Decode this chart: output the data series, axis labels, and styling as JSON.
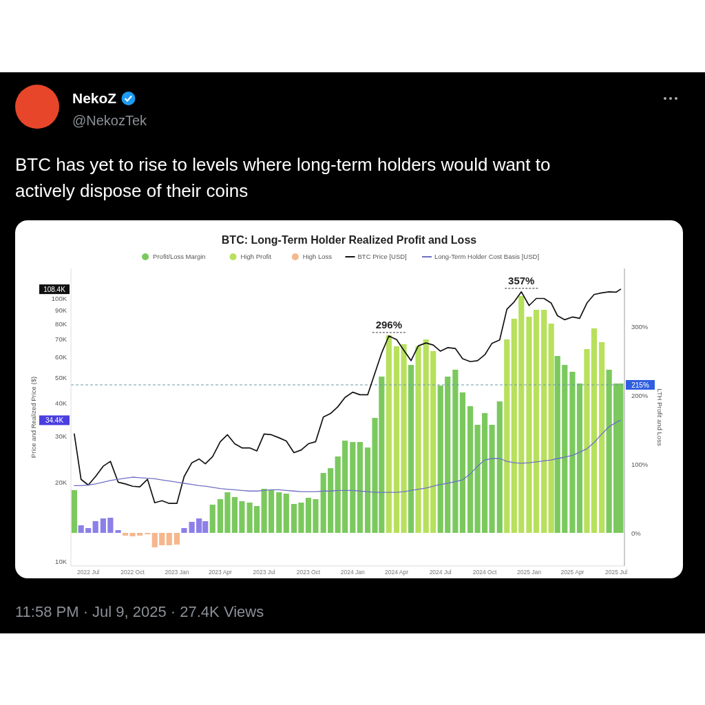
{
  "chart_data": {
    "type": "bar",
    "title": "BTC: Long-Term Holder Realized Profit and Loss",
    "ylabel": "Price and Realized Price ($)",
    "y2label": "LTH Profit and Loss",
    "annotations": [
      "NekoZ",
      "@NekozTek",
      "BTC has yet to rise to levels where long-term holders would want to actively dispose of their coins",
      "11:58 PM · Jul 9, 2025 · 27.4K Views",
      {
        "text": "296%",
        "x": "2024-03-16",
        "y": 72000
      },
      {
        "text": "357%",
        "x": "2024-12-16",
        "y": 106000
      },
      "108.4K",
      "34.4K"
    ],
    "x": [
      "2022-06-02",
      "2022-06-16",
      "2022-07-01",
      "2022-07-16",
      "2022-08-01",
      "2022-08-16",
      "2022-09-01",
      "2022-09-16",
      "2022-10-01",
      "2022-10-16",
      "2022-11-01",
      "2022-11-16",
      "2022-12-01",
      "2022-12-16",
      "2023-01-01",
      "2023-01-16",
      "2023-02-01",
      "2023-02-16",
      "2023-03-01",
      "2023-03-16",
      "2023-04-01",
      "2023-04-16",
      "2023-05-01",
      "2023-05-16",
      "2023-06-01",
      "2023-06-16",
      "2023-07-01",
      "2023-07-16",
      "2023-08-01",
      "2023-08-16",
      "2023-09-01",
      "2023-09-16",
      "2023-10-01",
      "2023-10-16",
      "2023-11-01",
      "2023-11-16",
      "2023-12-01",
      "2023-12-16",
      "2024-01-01",
      "2024-01-16",
      "2024-02-01",
      "2024-02-16",
      "2024-03-01",
      "2024-03-16",
      "2024-04-01",
      "2024-04-16",
      "2024-05-01",
      "2024-05-16",
      "2024-06-01",
      "2024-06-16",
      "2024-07-01",
      "2024-07-16",
      "2024-08-01",
      "2024-08-16",
      "2024-09-01",
      "2024-09-16",
      "2024-10-01",
      "2024-10-16",
      "2024-11-01",
      "2024-11-16",
      "2024-12-01",
      "2024-12-16",
      "2025-01-01",
      "2025-01-16",
      "2025-02-01",
      "2025-02-16",
      "2025-03-01",
      "2025-03-16",
      "2025-04-01",
      "2025-04-16",
      "2025-05-01",
      "2025-05-16",
      "2025-06-01",
      "2025-06-16",
      "2025-07-01",
      "2025-07-10"
    ],
    "series": [
      {
        "name": "Profit/Loss Margin",
        "axis": "y2",
        "color": "#7bc95e",
        "values": [
          62,
          11,
          7,
          17,
          21,
          22,
          4,
          null,
          null,
          null,
          null,
          null,
          null,
          null,
          null,
          7,
          16,
          21,
          17,
          41,
          49,
          59,
          52,
          46,
          44,
          39,
          64,
          62,
          59,
          57,
          42,
          44,
          51,
          49,
          87,
          94,
          111,
          134,
          132,
          132,
          124,
          167,
          227,
          null,
          null,
          null,
          244,
          null,
          null,
          null,
          214,
          227,
          237,
          204,
          184,
          157,
          174,
          157,
          191,
          null,
          null,
          null,
          null,
          null,
          null,
          null,
          257,
          244,
          234,
          217,
          null,
          null,
          null,
          237,
          217,
          217
        ],
        "colors": [
          "#7bc95e",
          "#8c80e8",
          "#8c80e8",
          "#8c80e8",
          "#8c80e8",
          "#8c80e8",
          "#8c80e8",
          null,
          null,
          null,
          null,
          null,
          null,
          null,
          null,
          "#8c80e8",
          "#8c80e8",
          "#8c80e8",
          "#8c80e8",
          "#7bc95e",
          "#7bc95e",
          "#7bc95e",
          "#7bc95e",
          "#7bc95e",
          "#7bc95e",
          "#7bc95e",
          "#7bc95e",
          "#7bc95e",
          "#7bc95e",
          "#7bc95e",
          "#7bc95e",
          "#7bc95e",
          "#7bc95e",
          "#7bc95e",
          "#7bc95e",
          "#7bc95e",
          "#7bc95e",
          "#7bc95e",
          "#7bc95e",
          "#7bc95e",
          "#7bc95e",
          "#7bc95e",
          "#7bc95e",
          null,
          null,
          null,
          "#7bc95e",
          null,
          null,
          null,
          "#7bc95e",
          "#7bc95e",
          "#7bc95e",
          "#7bc95e",
          "#7bc95e",
          "#7bc95e",
          "#7bc95e",
          "#7bc95e",
          "#7bc95e",
          null,
          null,
          null,
          null,
          null,
          null,
          null,
          "#7bc95e",
          "#7bc95e",
          "#7bc95e",
          "#7bc95e",
          null,
          null,
          null,
          "#7bc95e",
          "#7bc95e",
          "#7bc95e"
        ]
      },
      {
        "name": "High Profit",
        "axis": "y2",
        "color": "#b7e05c",
        "values": [
          null,
          null,
          null,
          null,
          null,
          null,
          null,
          null,
          null,
          null,
          null,
          null,
          null,
          null,
          null,
          null,
          null,
          null,
          null,
          null,
          null,
          null,
          null,
          null,
          null,
          null,
          null,
          null,
          null,
          null,
          null,
          null,
          null,
          null,
          null,
          null,
          null,
          null,
          null,
          null,
          null,
          null,
          null,
          287,
          271,
          274,
          null,
          271,
          281,
          264,
          null,
          null,
          null,
          null,
          null,
          null,
          null,
          null,
          null,
          281,
          311,
          344,
          314,
          324,
          324,
          304,
          null,
          null,
          null,
          null,
          267,
          297,
          277,
          null,
          null,
          null
        ]
      },
      {
        "name": "High Loss",
        "axis": "y2",
        "color": "#f5b78e",
        "values": [
          null,
          null,
          null,
          null,
          null,
          null,
          null,
          -4,
          -5,
          -4,
          -2,
          -21,
          -18,
          -18,
          -17,
          null,
          null,
          null,
          null,
          null,
          null,
          null,
          null,
          null,
          null,
          null,
          null,
          null,
          null,
          null,
          null,
          null,
          null,
          null,
          null,
          null,
          null,
          null,
          null,
          null,
          null,
          null,
          null,
          null,
          null,
          null,
          null,
          null,
          null,
          null,
          null,
          null,
          null,
          null,
          null,
          null,
          null,
          null,
          null,
          null,
          null,
          null,
          null,
          null,
          null,
          null,
          null,
          null,
          null,
          null,
          null,
          null,
          null,
          null,
          null,
          null
        ]
      },
      {
        "name": "BTC Price [USD]",
        "type": "line",
        "color": "#111111",
        "values": [
          30500,
          20500,
          19500,
          21000,
          23000,
          24000,
          20000,
          19700,
          19300,
          19200,
          20500,
          16700,
          17000,
          16600,
          16600,
          21000,
          23700,
          24500,
          23500,
          25000,
          28500,
          30300,
          28000,
          27000,
          27000,
          26300,
          30500,
          30300,
          29500,
          28700,
          25900,
          26500,
          28000,
          28500,
          35400,
          36500,
          38700,
          42000,
          44000,
          43000,
          43000,
          52000,
          62000,
          72000,
          69700,
          63500,
          58000,
          66000,
          67700,
          66500,
          63000,
          65000,
          64500,
          59000,
          57500,
          58000,
          61000,
          67500,
          69500,
          91000,
          97000,
          106000,
          94000,
          100000,
          100000,
          96000,
          86000,
          83000,
          85000,
          84000,
          96000,
          103500,
          105000,
          106000,
          105700,
          108400
        ]
      },
      {
        "name": "Long-Term Holder Cost Basis [USD]",
        "type": "line",
        "color": "#6f6fc4",
        "values": [
          19400,
          19400,
          19500,
          19700,
          20000,
          20300,
          20500,
          20700,
          20900,
          20800,
          20700,
          20600,
          20400,
          20200,
          20000,
          19800,
          19600,
          19400,
          19300,
          19100,
          18900,
          18800,
          18700,
          18600,
          18500,
          18500,
          18600,
          18700,
          18700,
          18600,
          18500,
          18400,
          18400,
          18400,
          18500,
          18500,
          18600,
          18600,
          18600,
          18500,
          18400,
          18300,
          18300,
          18300,
          18300,
          18400,
          18600,
          18800,
          19000,
          19300,
          19600,
          19800,
          20100,
          20400,
          21500,
          23000,
          24300,
          24600,
          24600,
          24000,
          23700,
          23600,
          23700,
          23900,
          24100,
          24300,
          24600,
          24900,
          25300,
          26000,
          26800,
          28300,
          30500,
          32500,
          33800,
          34400
        ]
      }
    ],
    "ref_lines": [
      {
        "axis": "y2",
        "value": 215,
        "label": "215%",
        "color": "#6a9aa6",
        "line_style": "dashed"
      }
    ],
    "xlim": [
      "2022-05-26",
      "2025-07-18"
    ],
    "xticks": [
      {
        "value": "2022-07-01",
        "label": "2022 Jul"
      },
      {
        "value": "2022-10-01",
        "label": "2022 Oct"
      },
      {
        "value": "2023-01-01",
        "label": "2023 Jan"
      },
      {
        "value": "2023-04-01",
        "label": "2023 Apr"
      },
      {
        "value": "2023-07-01",
        "label": "2023 Jul"
      },
      {
        "value": "2023-10-01",
        "label": "2023 Oct"
      },
      {
        "value": "2024-01-01",
        "label": "2024 Jan"
      },
      {
        "value": "2024-04-01",
        "label": "2024 Apr"
      },
      {
        "value": "2024-07-01",
        "label": "2024 Jul"
      },
      {
        "value": "2024-10-01",
        "label": "2024 Oct"
      },
      {
        "value": "2025-01-01",
        "label": "2025 Jan"
      },
      {
        "value": "2025-04-01",
        "label": "2025 Apr"
      },
      {
        "value": "2025-07-01",
        "label": "2025 Jul"
      }
    ],
    "ylim": [
      9600,
      130000
    ],
    "yticks": [
      {
        "value": 10000,
        "label": "10K"
      },
      {
        "value": 20000,
        "label": "20K"
      },
      {
        "value": 30000,
        "label": "30K"
      },
      {
        "value": 40000,
        "label": "40K"
      },
      {
        "value": 50000,
        "label": "50K"
      },
      {
        "value": 60000,
        "label": "60K"
      },
      {
        "value": 70000,
        "label": "70K"
      },
      {
        "value": 80000,
        "label": "80K"
      },
      {
        "value": 90000,
        "label": "90K"
      },
      {
        "value": 100000,
        "label": "100K"
      }
    ],
    "y2lim": [
      -48,
      384
    ],
    "y2ticks": [
      {
        "value": 0,
        "label": "0%"
      },
      {
        "value": 100,
        "label": "100%"
      },
      {
        "value": 200,
        "label": "200%"
      },
      {
        "value": 300,
        "label": "300%"
      }
    ],
    "log": "y",
    "legend": "top"
  }
}
